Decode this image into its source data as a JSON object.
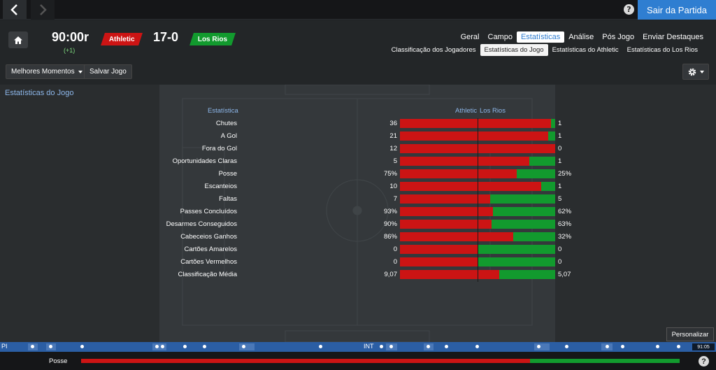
{
  "topbar": {
    "help_icon": "help-icon",
    "exit_label": "Sair da Partida"
  },
  "match": {
    "clock": "90:00r",
    "added_time": "(+1)",
    "home_team": "Athletic",
    "away_team": "Los Rios",
    "score": "17-0",
    "home_color": "#cc1414",
    "away_color": "#129a2e"
  },
  "tabs": [
    {
      "label": "Geral"
    },
    {
      "label": "Campo"
    },
    {
      "label": "Estatísticas",
      "active": true
    },
    {
      "label": "Análise"
    },
    {
      "label": "Pós Jogo"
    },
    {
      "label": "Enviar Destaques"
    }
  ],
  "subtabs": [
    {
      "label": "Classificação dos Jogadores"
    },
    {
      "label": "Estatísticas do Jogo",
      "active": true
    },
    {
      "label": "Estatísticas do Athletic"
    },
    {
      "label": "Estatísticas do Los Rios"
    }
  ],
  "toolbar": {
    "highlights_label": "Melhores Momentos",
    "save_label": "Salvar Jogo"
  },
  "stats": {
    "section_title": "Estatísticas do Jogo",
    "col_stat": "Estatística",
    "col_home": "Athletic",
    "col_away": "Los Rios",
    "rows": [
      {
        "label": "Chutes",
        "home": "36",
        "away": "1",
        "home_share": 0.973
      },
      {
        "label": "A Gol",
        "home": "21",
        "away": "1",
        "home_share": 0.955
      },
      {
        "label": "Fora do Gol",
        "home": "12",
        "away": "0",
        "home_share": 1.0
      },
      {
        "label": "Oportunidades Claras",
        "home": "5",
        "away": "1",
        "home_share": 0.833
      },
      {
        "label": "Posse",
        "home": "75%",
        "away": "25%",
        "home_share": 0.75
      },
      {
        "label": "Escanteios",
        "home": "10",
        "away": "1",
        "home_share": 0.909
      },
      {
        "label": "Faltas",
        "home": "7",
        "away": "5",
        "home_share": 0.583
      },
      {
        "label": "Passes Concluídos",
        "home": "93%",
        "away": "62%",
        "home_share": 0.6
      },
      {
        "label": "Desarmes Conseguidos",
        "home": "90%",
        "away": "63%",
        "home_share": 0.588
      },
      {
        "label": "Cabeceios Ganhos",
        "home": "86%",
        "away": "32%",
        "home_share": 0.729
      },
      {
        "label": "Cartões Amarelos",
        "home": "0",
        "away": "0",
        "home_share": 0.5
      },
      {
        "label": "Cartões Vermelhos",
        "home": "0",
        "away": "0",
        "home_share": 0.5
      },
      {
        "label": "Classificação Média",
        "home": "9,07",
        "away": "5,07",
        "home_share": 0.641
      }
    ]
  },
  "personalize_label": "Personalizar",
  "timeline": {
    "start_label": "PI",
    "half_label": "INT",
    "time": "91:05"
  },
  "footer": {
    "possession_label": "Posse",
    "possession_home_share": 0.75
  }
}
